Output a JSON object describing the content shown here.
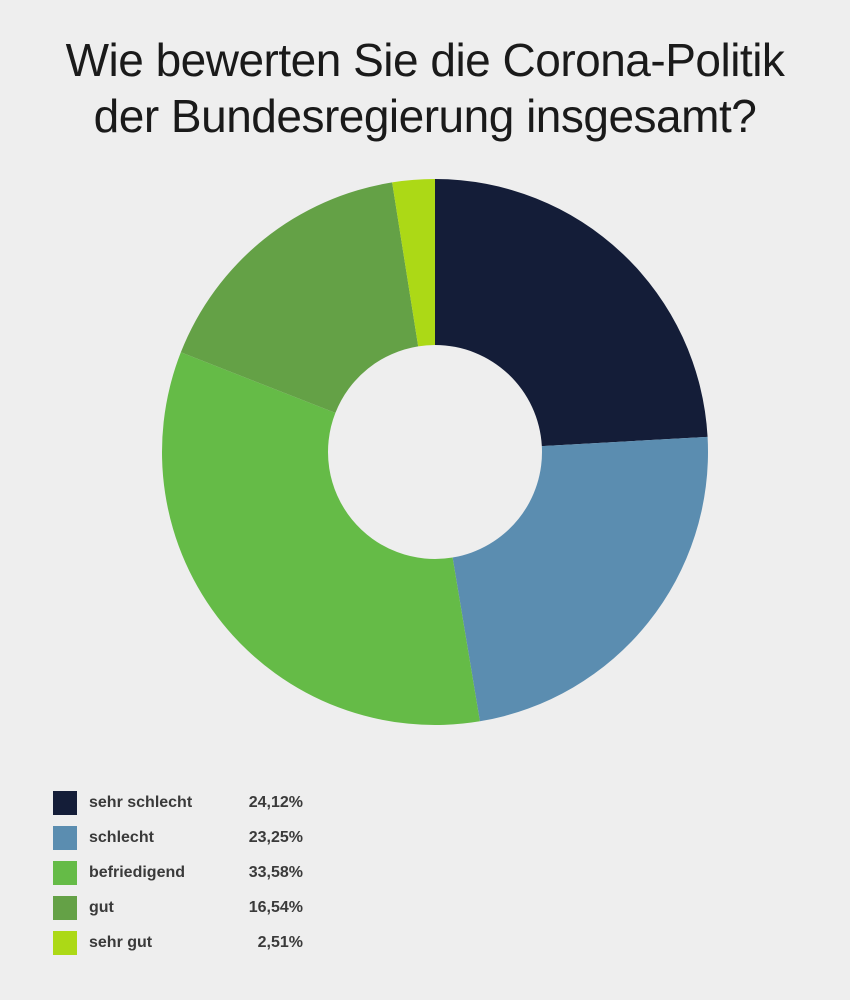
{
  "title_lines": [
    "Wie bewerten Sie die Corona-Politik",
    "der Bundesregierung insgesamt?"
  ],
  "chart_data": {
    "type": "pie",
    "variant": "donut",
    "title": "Wie bewerten Sie die Corona-Politik der Bundesregierung insgesamt?",
    "unit": "%",
    "legend_position": "bottom-left",
    "slices": [
      {
        "label": "sehr schlecht",
        "value": 24.12,
        "display": "24,12%",
        "color": "#141d38"
      },
      {
        "label": "schlecht",
        "value": 23.25,
        "display": "23,25%",
        "color": "#5b8db0"
      },
      {
        "label": "befriedigend",
        "value": 33.58,
        "display": "33,58%",
        "color": "#65bb47"
      },
      {
        "label": "gut",
        "value": 16.54,
        "display": "16,54%",
        "color": "#64a146"
      },
      {
        "label": "sehr gut",
        "value": 2.51,
        "display": "2,51%",
        "color": "#acd916"
      }
    ]
  }
}
